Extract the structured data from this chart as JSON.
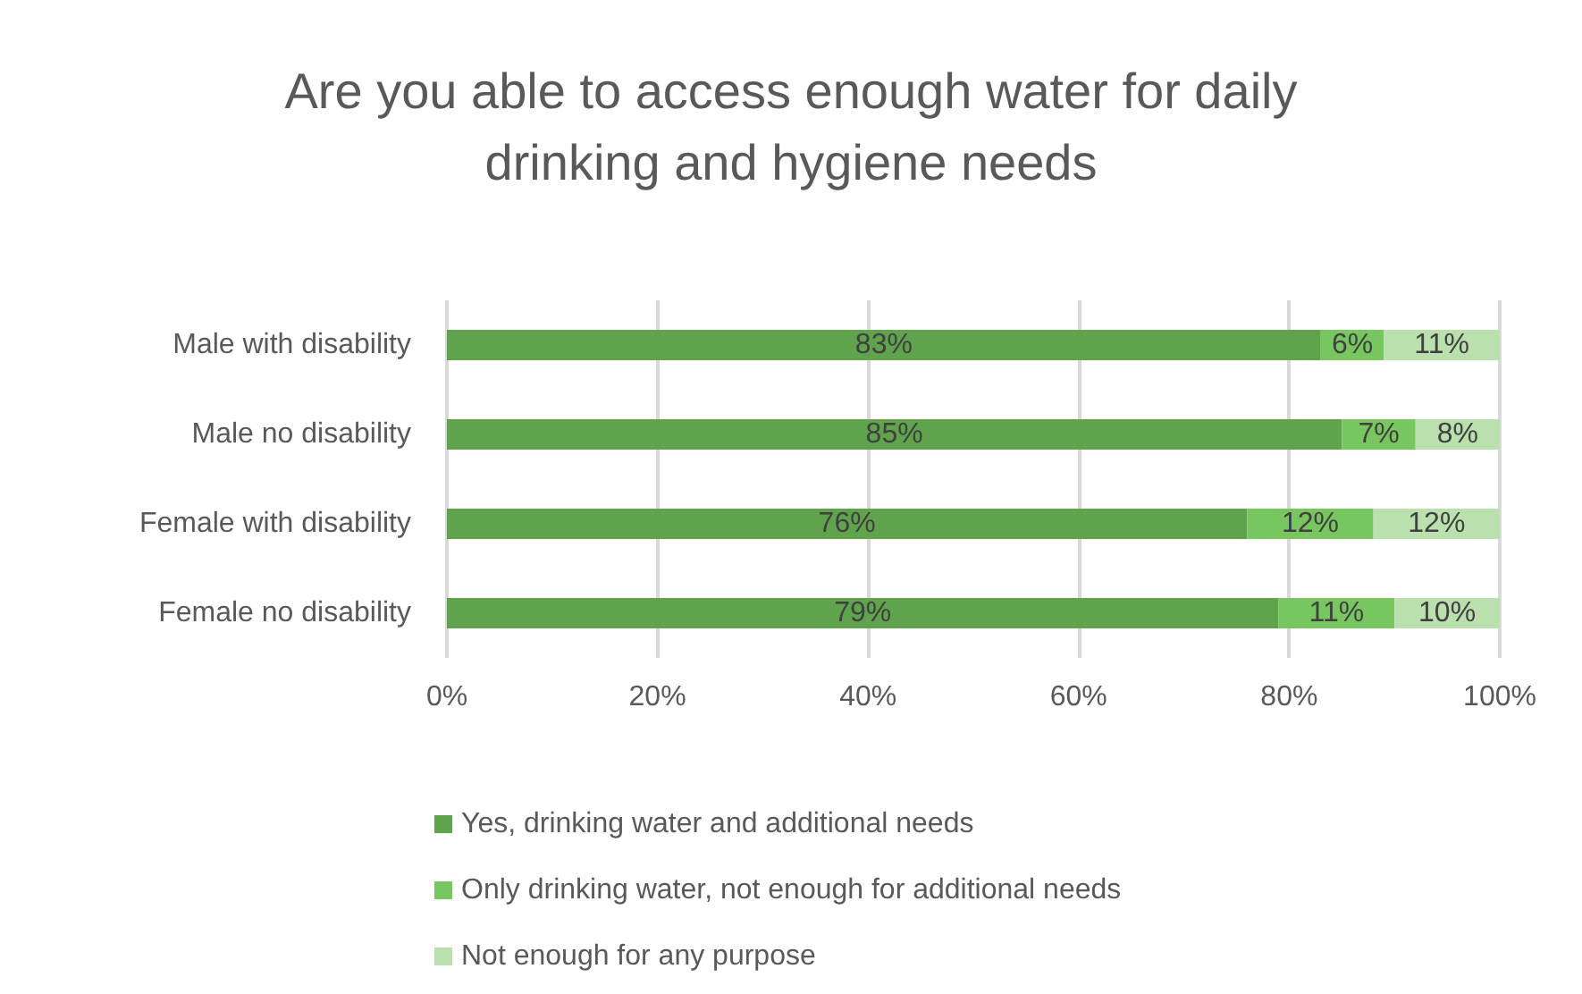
{
  "chart_data": {
    "type": "bar",
    "orientation": "horizontal",
    "stacked": true,
    "title": "Are you able to access enough water for daily\ndrinking and hygiene needs",
    "categories": [
      "Male with disability",
      "Male no disability",
      "Female with disability",
      "Female no disability"
    ],
    "series": [
      {
        "name": "Yes, drinking water and additional needs",
        "color": "#5fa34c",
        "values": [
          83,
          85,
          76,
          79
        ],
        "value_labels": [
          "83%",
          "85%",
          "76%",
          "79%"
        ]
      },
      {
        "name": "Only drinking water, not enough for additional needs",
        "color": "#77c660",
        "values": [
          6,
          7,
          12,
          11
        ],
        "value_labels": [
          "6%",
          "7%",
          "12%",
          "11%"
        ]
      },
      {
        "name": "Not enough for any purpose",
        "color": "#b9e0ad",
        "values": [
          11,
          8,
          12,
          10
        ],
        "value_labels": [
          "11%",
          "8%",
          "12%",
          "10%"
        ]
      }
    ],
    "xlim": [
      0,
      100
    ],
    "xticks": [
      {
        "value": 0,
        "label": "0%"
      },
      {
        "value": 20,
        "label": "20%"
      },
      {
        "value": 40,
        "label": "40%"
      },
      {
        "value": 60,
        "label": "60%"
      },
      {
        "value": 80,
        "label": "80%"
      },
      {
        "value": 100,
        "label": "100%"
      }
    ],
    "grid": "x",
    "legend": "bottom"
  }
}
